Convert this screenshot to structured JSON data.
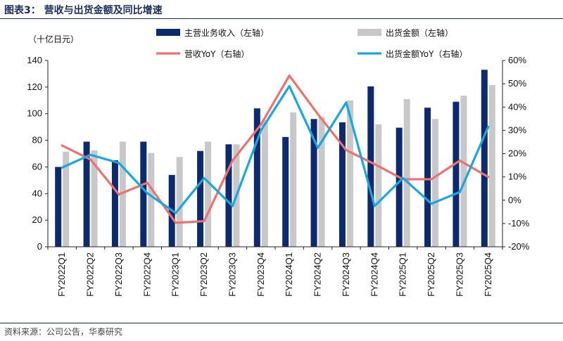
{
  "header": {
    "title": "图表3：  营收与出货金额及同比增速"
  },
  "footer": {
    "source": "资料来源：公司公告，华泰研究"
  },
  "chart_data": {
    "type": "bar",
    "unit_label": "（十亿日元）",
    "categories": [
      "FY2022Q1",
      "FY2022Q2",
      "FY2022Q3",
      "FY2022Q4",
      "FY2023Q1",
      "FY2023Q2",
      "FY2023Q3",
      "FY2023Q4",
      "FY2024Q1",
      "FY2024Q2",
      "FY2024Q3",
      "FY2024Q4",
      "FY2025Q1",
      "FY2025Q2",
      "FY2025Q3",
      "FY2025Q4"
    ],
    "left_axis": {
      "min": 0,
      "max": 140,
      "step": 20,
      "ticks": [
        "0",
        "20",
        "40",
        "60",
        "80",
        "100",
        "120",
        "140"
      ]
    },
    "right_axis": {
      "min": -20,
      "max": 60,
      "step": 10,
      "ticks": [
        "-20%",
        "-10%",
        "0%",
        "10%",
        "20%",
        "30%",
        "40%",
        "50%",
        "60%"
      ]
    },
    "legend_position": "top",
    "series": [
      {
        "name": "主营业务收入（左轴）",
        "type": "bar",
        "axis": "left",
        "color": "#0d2a6e",
        "values": [
          60,
          79,
          65,
          79,
          54,
          72,
          77,
          104,
          82.5,
          96,
          93.5,
          120.5,
          89.5,
          104.5,
          109,
          133
        ]
      },
      {
        "name": "出货金额（左轴）",
        "type": "bar",
        "axis": "left",
        "color": "#c8c8c8",
        "values": [
          71.5,
          72.5,
          79,
          70.5,
          67.5,
          79,
          77,
          95,
          101,
          97.5,
          110,
          92,
          111,
          96,
          113.5,
          121.5
        ]
      },
      {
        "name": "营收YoY（右轴）",
        "type": "line",
        "axis": "right",
        "color": "#f07070",
        "values": [
          23.5,
          17.5,
          2.5,
          7.5,
          -9.7,
          -9,
          17,
          32.5,
          53.5,
          37,
          21.5,
          15.5,
          9,
          9,
          17,
          10
        ]
      },
      {
        "name": "出货金额YoY（右轴）",
        "type": "line",
        "axis": "right",
        "color": "#1aa7e0",
        "values": [
          14,
          19.5,
          16,
          3,
          -5.5,
          9.5,
          -2.5,
          30,
          49,
          22.5,
          42,
          -2.5,
          9.5,
          -1.5,
          3.5,
          31.5
        ]
      }
    ]
  }
}
